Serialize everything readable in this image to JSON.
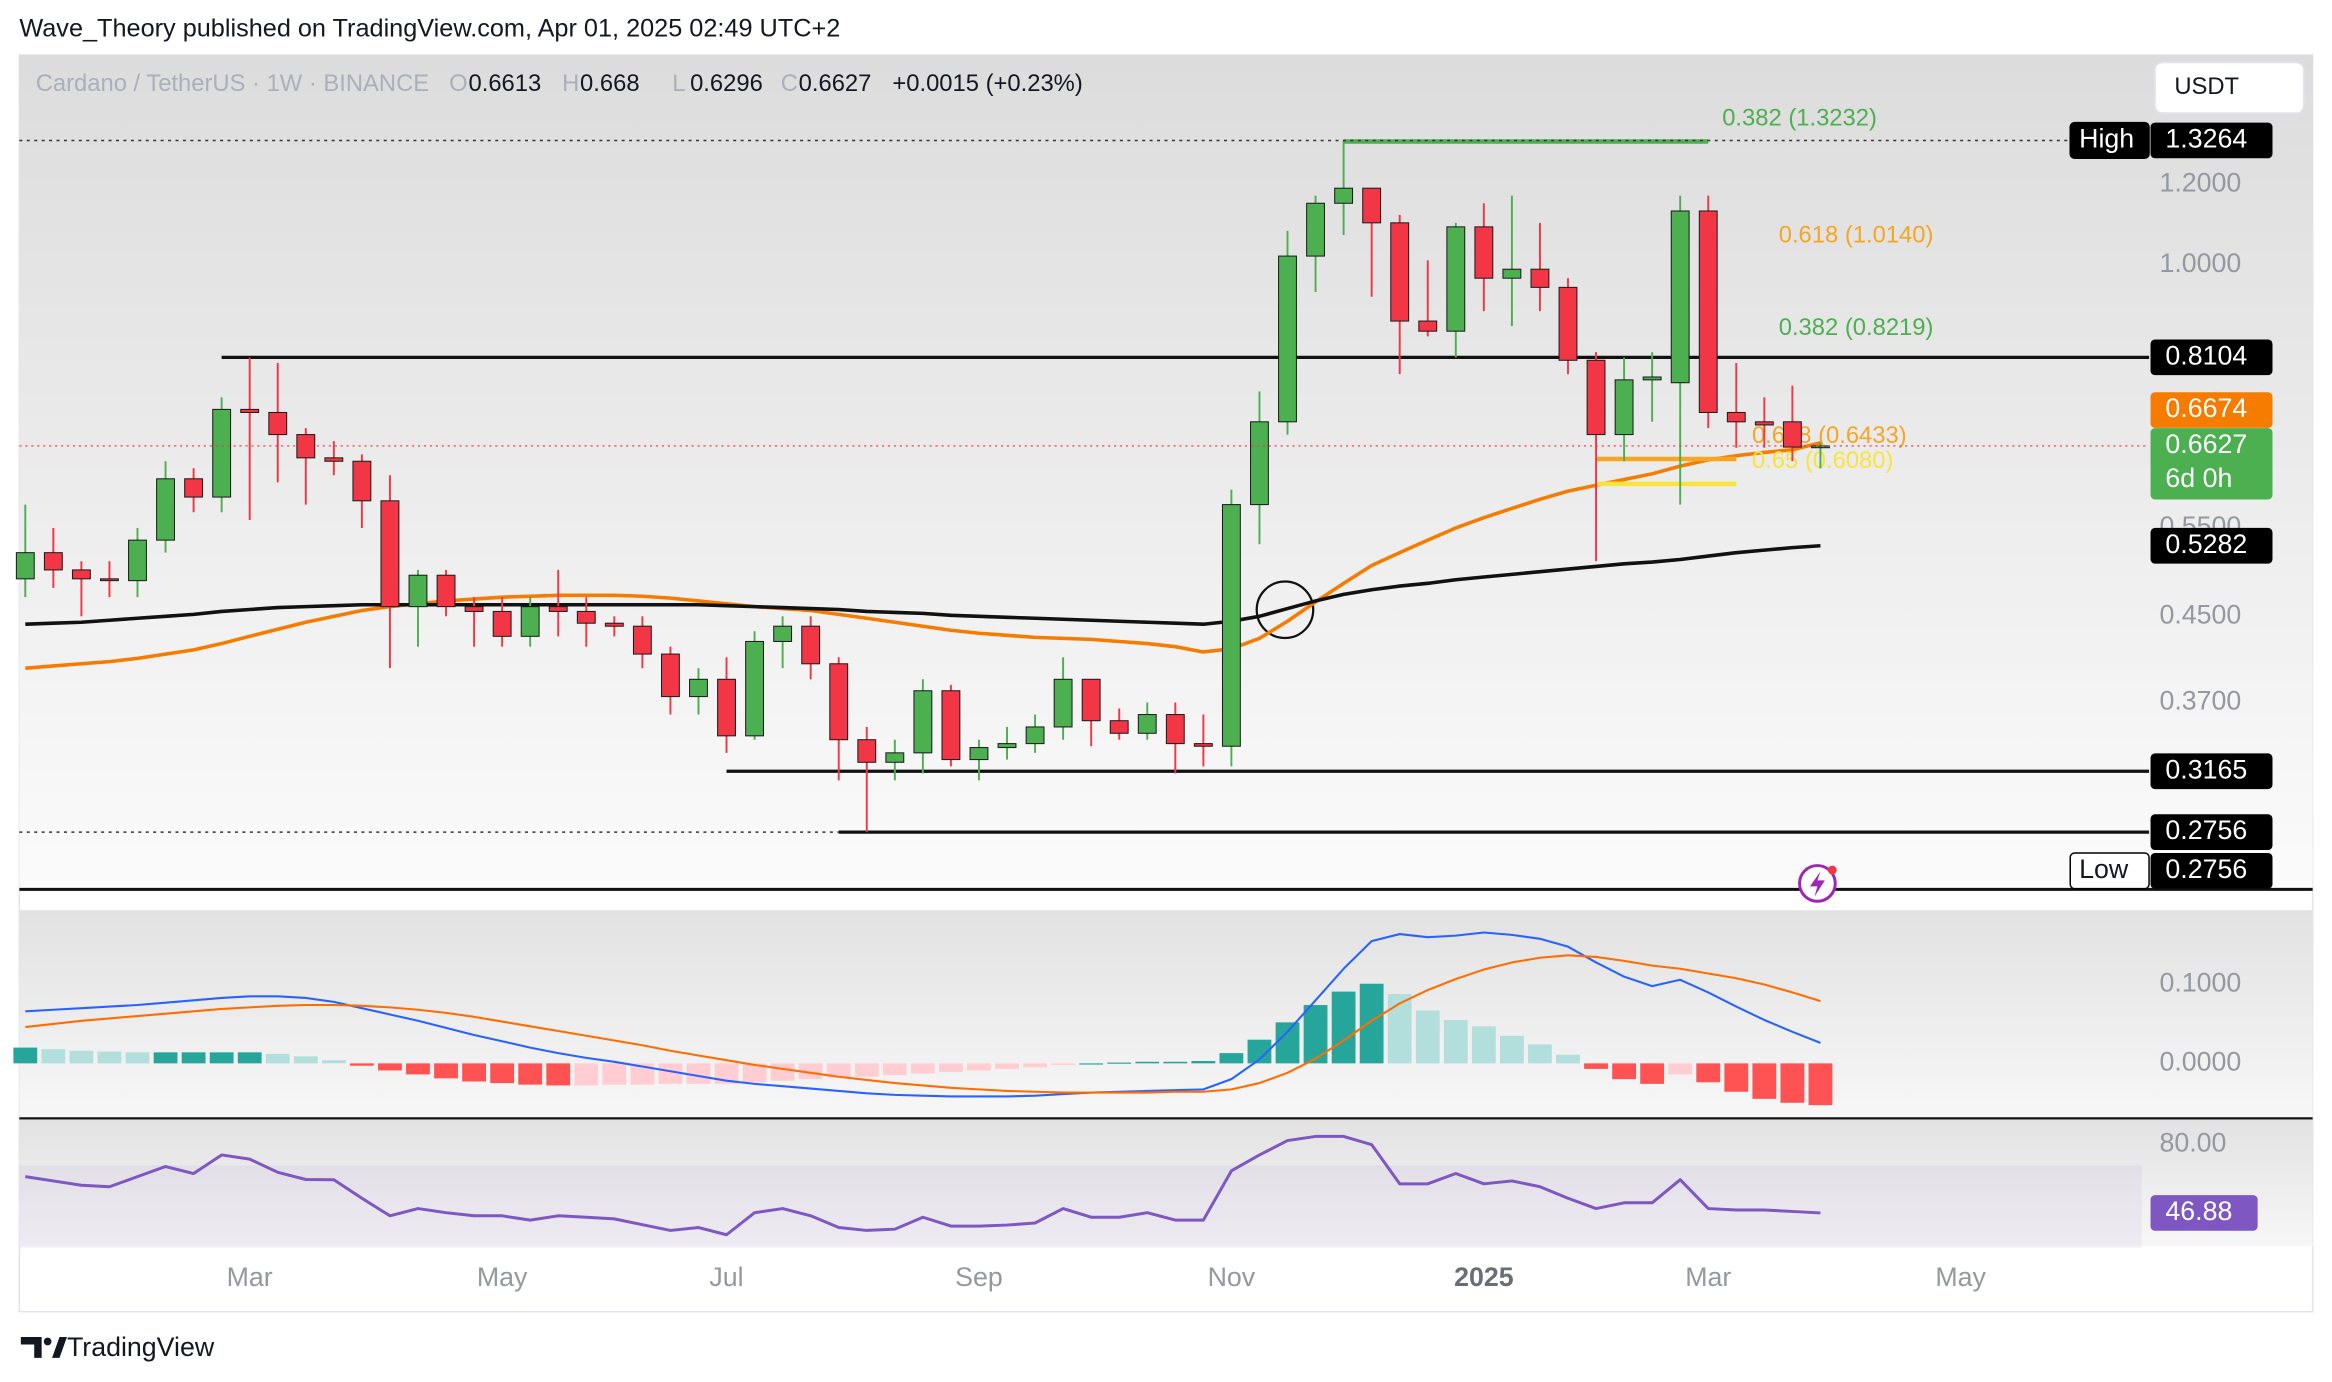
{
  "header": {
    "publisher": "Wave_Theory published on TradingView.com, Apr 01, 2025 02:49 UTC+2",
    "brand": "TradingView"
  },
  "chart_data": {
    "type": "candlestick",
    "symbol": "Cardano / TetherUS · 1W · BINANCE",
    "ohlc_keys": [
      "O",
      "H",
      "L",
      "C"
    ],
    "change": "+0.0015 (+0.23%)",
    "currency": "USDT",
    "countdown": "6d 0h",
    "log_scale": true,
    "grid": false,
    "up_color": "#4caf50",
    "down_color": "#f23645",
    "categories": [
      null,
      null,
      null,
      null,
      null,
      null,
      null,
      null,
      "Mar",
      null,
      null,
      null,
      null,
      null,
      null,
      null,
      null,
      "May",
      null,
      null,
      null,
      null,
      null,
      null,
      null,
      "Jul",
      null,
      null,
      null,
      null,
      null,
      null,
      null,
      null,
      "Sep",
      null,
      null,
      null,
      null,
      null,
      null,
      null,
      null,
      "Nov",
      null,
      null,
      null,
      null,
      null,
      null,
      null,
      null,
      "2025",
      null,
      null,
      null,
      null,
      null,
      null,
      null,
      "Mar",
      null,
      null,
      null,
      null,
      null,
      null,
      null,
      null,
      "May"
    ],
    "open": [
      0.49,
      0.52,
      0.5,
      0.49,
      0.488,
      0.535,
      0.615,
      0.59,
      0.72,
      0.715,
      0.68,
      0.645,
      0.64,
      0.585,
      0.46,
      0.494,
      0.46,
      0.455,
      0.43,
      0.46,
      0.455,
      0.443,
      0.44,
      0.413,
      0.375,
      0.39,
      0.343,
      0.425,
      0.44,
      0.404,
      0.34,
      0.323,
      0.33,
      0.38,
      0.325,
      0.334,
      0.337,
      0.35,
      0.39,
      0.355,
      0.345,
      0.36,
      0.337,
      0.335,
      0.58,
      0.7,
      1.02,
      1.15,
      1.19,
      1.1,
      0.88,
      0.86,
      1.09,
      0.97,
      0.99,
      0.95,
      0.805,
      0.68,
      0.77,
      0.765,
      1.13,
      0.715,
      0.7,
      0.7,
      0.6613,
      null,
      null,
      null,
      null,
      null
    ],
    "high": [
      0.58,
      0.55,
      0.51,
      0.51,
      0.55,
      0.64,
      0.63,
      0.74,
      0.81,
      0.8,
      0.69,
      0.67,
      0.65,
      0.62,
      0.5,
      0.5,
      0.47,
      0.47,
      0.47,
      0.5,
      0.47,
      0.45,
      0.45,
      0.42,
      0.4,
      0.41,
      0.435,
      0.45,
      0.45,
      0.41,
      0.35,
      0.34,
      0.39,
      0.385,
      0.34,
      0.35,
      0.36,
      0.41,
      0.39,
      0.365,
      0.37,
      0.37,
      0.36,
      0.6,
      0.75,
      1.08,
      1.17,
      1.3264,
      1.19,
      1.12,
      1.01,
      1.1,
      1.15,
      1.17,
      1.1,
      0.97,
      0.82,
      0.81,
      0.82,
      1.17,
      1.17,
      0.8,
      0.74,
      0.76,
      0.668,
      null,
      null,
      null,
      null,
      null
    ],
    "low": [
      0.47,
      0.48,
      0.45,
      0.47,
      0.47,
      0.52,
      0.57,
      0.57,
      0.56,
      0.61,
      0.58,
      0.62,
      0.55,
      0.4,
      0.42,
      0.45,
      0.42,
      0.42,
      0.42,
      0.43,
      0.42,
      0.43,
      0.4,
      0.36,
      0.36,
      0.33,
      0.34,
      0.4,
      0.39,
      0.31,
      0.2756,
      0.31,
      0.315,
      0.32,
      0.31,
      0.325,
      0.33,
      0.34,
      0.335,
      0.34,
      0.34,
      0.315,
      0.32,
      0.32,
      0.53,
      0.68,
      0.94,
      1.07,
      0.93,
      0.78,
      0.85,
      0.81,
      0.9,
      0.87,
      0.9,
      0.78,
      0.51,
      0.64,
      0.7,
      0.58,
      0.69,
      0.66,
      0.66,
      0.64,
      0.6296,
      null,
      null,
      null,
      null,
      null
    ],
    "close": [
      0.52,
      0.5,
      0.49,
      0.488,
      0.535,
      0.615,
      0.59,
      0.72,
      0.715,
      0.68,
      0.645,
      0.64,
      0.585,
      0.46,
      0.494,
      0.46,
      0.455,
      0.43,
      0.46,
      0.455,
      0.443,
      0.44,
      0.413,
      0.375,
      0.39,
      0.343,
      0.425,
      0.44,
      0.404,
      0.34,
      0.323,
      0.33,
      0.38,
      0.325,
      0.334,
      0.337,
      0.35,
      0.39,
      0.355,
      0.345,
      0.36,
      0.337,
      0.335,
      0.58,
      0.7,
      1.02,
      1.15,
      1.19,
      1.1,
      0.88,
      0.86,
      1.09,
      0.97,
      0.99,
      0.95,
      0.805,
      0.68,
      0.77,
      0.775,
      1.13,
      0.715,
      0.7,
      0.695,
      0.661,
      0.6627,
      null,
      null,
      null,
      null,
      null
    ],
    "overlays": [
      {
        "color": "#f57c00",
        "values": [
          0.4,
          0.402,
          0.404,
          0.406,
          0.409,
          0.413,
          0.417,
          0.423,
          0.43,
          0.437,
          0.444,
          0.45,
          0.456,
          0.46,
          0.463,
          0.466,
          0.468,
          0.47,
          0.471,
          0.472,
          0.472,
          0.472,
          0.471,
          0.469,
          0.466,
          0.463,
          0.46,
          0.458,
          0.456,
          0.452,
          0.448,
          0.444,
          0.44,
          0.436,
          0.433,
          0.431,
          0.429,
          0.428,
          0.427,
          0.425,
          0.423,
          0.42,
          0.415,
          0.418,
          0.428,
          0.445,
          0.465,
          0.485,
          0.505,
          0.52,
          0.535,
          0.55,
          0.563,
          0.575,
          0.587,
          0.598,
          0.606,
          0.614,
          0.622,
          0.633,
          0.642,
          0.648,
          0.653,
          0.657,
          0.6674,
          null,
          null,
          null,
          null,
          null
        ]
      },
      {
        "color": "#111111",
        "values": [
          0.442,
          0.443,
          0.444,
          0.446,
          0.448,
          0.45,
          0.452,
          0.455,
          0.457,
          0.459,
          0.46,
          0.461,
          0.462,
          0.462,
          0.462,
          0.462,
          0.462,
          0.462,
          0.462,
          0.462,
          0.462,
          0.462,
          0.462,
          0.462,
          0.462,
          0.461,
          0.46,
          0.459,
          0.458,
          0.457,
          0.455,
          0.454,
          0.453,
          0.451,
          0.45,
          0.449,
          0.448,
          0.447,
          0.446,
          0.445,
          0.444,
          0.443,
          0.442,
          0.445,
          0.45,
          0.458,
          0.466,
          0.473,
          0.478,
          0.482,
          0.485,
          0.489,
          0.492,
          0.495,
          0.498,
          0.501,
          0.504,
          0.507,
          0.509,
          0.512,
          0.516,
          0.52,
          0.523,
          0.526,
          0.5282,
          null,
          null,
          null,
          null,
          null
        ]
      }
    ],
    "ylim": [
      0.2324,
      1.605
    ],
    "yticks": [
      {
        "value": 0.37,
        "label": "0.3700"
      },
      {
        "value": 0.45,
        "label": "0.4500"
      },
      {
        "value": 0.55,
        "label": "0.5500"
      },
      {
        "value": 1.0,
        "label": "1.0000"
      },
      {
        "value": 1.2,
        "label": "1.2000"
      }
    ],
    "levels": [
      0.8104,
      0.3165,
      0.2756
    ],
    "high_low": [
      {
        "label": "High",
        "value": 1.3264
      },
      {
        "label": "Low",
        "value": 0.2756
      }
    ],
    "fib_levels": [
      {
        "label": "0.382 (1.3232)",
        "price": 1.3232,
        "color": "#4caf50",
        "line": true
      },
      {
        "label": "0.618 (1.0140)",
        "price": 1.014,
        "color": "#f5a623",
        "line": false
      },
      {
        "label": "0.382 (0.8219)",
        "price": 0.8219,
        "color": "#4caf50",
        "line": false
      },
      {
        "label": "0.618 (0.6433)",
        "price": 0.6433,
        "color": "#f5a623",
        "line": true
      },
      {
        "label": "0.65 (0.6080)",
        "price": 0.608,
        "color": "#f7e43c",
        "line": true
      }
    ],
    "macd": {
      "ylim": [
        -0.0698,
        0.1943
      ],
      "yticks": [
        {
          "value": 0,
          "label": "0.0000"
        },
        {
          "value": 0.1,
          "label": "0.1000"
        }
      ],
      "histogram": [
        0.02,
        0.018,
        0.016,
        0.015,
        0.014,
        0.014,
        0.014,
        0.014,
        0.014,
        0.012,
        0.009,
        0.004,
        -0.003,
        -0.009,
        -0.014,
        -0.019,
        -0.023,
        -0.025,
        -0.027,
        -0.028,
        -0.028,
        -0.027,
        -0.027,
        -0.026,
        -0.026,
        -0.026,
        -0.024,
        -0.022,
        -0.02,
        -0.018,
        -0.017,
        -0.015,
        -0.013,
        -0.011,
        -0.009,
        -0.007,
        -0.005,
        -0.002,
        0.0,
        0.001,
        0.002,
        0.002,
        0.003,
        0.013,
        0.03,
        0.052,
        0.074,
        0.091,
        0.101,
        0.088,
        0.067,
        0.055,
        0.047,
        0.035,
        0.024,
        0.011,
        -0.007,
        -0.02,
        -0.026,
        -0.014,
        -0.024,
        -0.036,
        -0.045,
        -0.05,
        -0.053,
        null,
        null,
        null,
        null,
        null
      ],
      "lines": [
        {
          "color": "#2962ff",
          "values": [
            0.066,
            0.068,
            0.07,
            0.072,
            0.074,
            0.077,
            0.08,
            0.083,
            0.085,
            0.085,
            0.083,
            0.078,
            0.07,
            0.062,
            0.054,
            0.045,
            0.036,
            0.028,
            0.02,
            0.013,
            0.007,
            0.002,
            -0.004,
            -0.01,
            -0.016,
            -0.022,
            -0.026,
            -0.029,
            -0.032,
            -0.035,
            -0.038,
            -0.04,
            -0.041,
            -0.042,
            -0.042,
            -0.042,
            -0.041,
            -0.039,
            -0.037,
            -0.036,
            -0.035,
            -0.034,
            -0.033,
            -0.02,
            0.005,
            0.04,
            0.08,
            0.12,
            0.155,
            0.164,
            0.16,
            0.162,
            0.166,
            0.163,
            0.158,
            0.148,
            0.128,
            0.11,
            0.098,
            0.106,
            0.09,
            0.072,
            0.055,
            0.04,
            0.026,
            null,
            null,
            null,
            null,
            null
          ]
        },
        {
          "color": "#ff6d00",
          "values": [
            0.046,
            0.05,
            0.054,
            0.057,
            0.06,
            0.063,
            0.066,
            0.069,
            0.071,
            0.073,
            0.074,
            0.074,
            0.073,
            0.071,
            0.068,
            0.064,
            0.059,
            0.053,
            0.047,
            0.041,
            0.035,
            0.029,
            0.023,
            0.016,
            0.01,
            0.004,
            -0.002,
            -0.007,
            -0.012,
            -0.017,
            -0.021,
            -0.025,
            -0.028,
            -0.031,
            -0.033,
            -0.035,
            -0.036,
            -0.037,
            -0.037,
            -0.037,
            -0.037,
            -0.036,
            -0.036,
            -0.033,
            -0.025,
            -0.012,
            0.006,
            0.029,
            0.054,
            0.076,
            0.093,
            0.107,
            0.119,
            0.128,
            0.134,
            0.137,
            0.135,
            0.13,
            0.124,
            0.12,
            0.114,
            0.108,
            0.1,
            0.09,
            0.079,
            null,
            null,
            null,
            null,
            null
          ]
        }
      ]
    },
    "rsi": {
      "ylim": [
        30.7,
        91.3
      ],
      "yticks": [
        {
          "value": 80,
          "label": "80.00"
        }
      ],
      "band": [
        30,
        70
      ],
      "color": "#7e57c2",
      "values": [
        64.5,
        62.4,
        60.3,
        59.6,
        64.5,
        69.4,
        66,
        75,
        73,
        66.6,
        63.1,
        63,
        54,
        45.5,
        49,
        47,
        45.5,
        45.5,
        43.4,
        45.5,
        44.8,
        44,
        41.2,
        38.4,
        39.8,
        36.3,
        47,
        49,
        45.5,
        39.8,
        38.4,
        39,
        44.8,
        40.5,
        40.5,
        41,
        42,
        49,
        44.8,
        44.8,
        47,
        43.4,
        43.4,
        67.3,
        75,
        82,
        84,
        84,
        80,
        61,
        61,
        66,
        61,
        62.4,
        59.6,
        54,
        49,
        51.8,
        51.8,
        63,
        49,
        48.3,
        48.3,
        47.6,
        46.88,
        null,
        null,
        null,
        null,
        null
      ]
    }
  }
}
